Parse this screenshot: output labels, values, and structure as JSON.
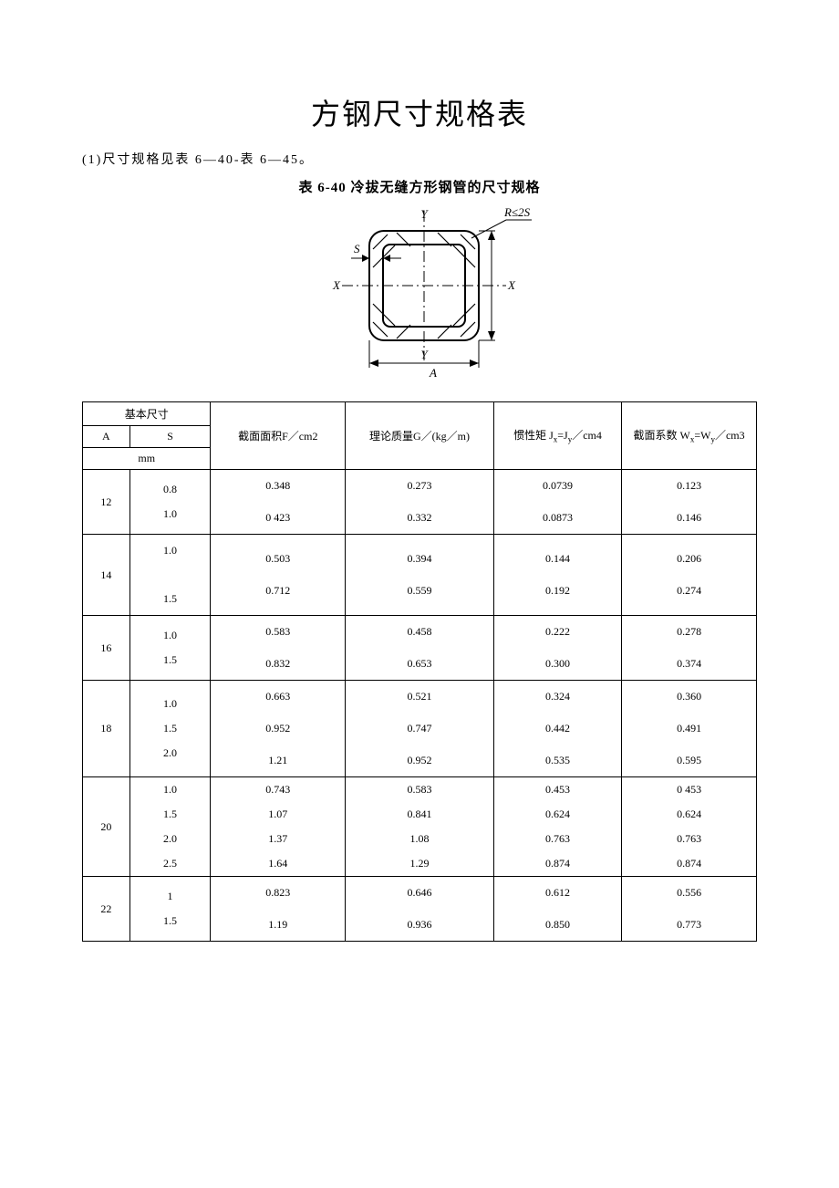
{
  "document": {
    "main_title": "方钢尺寸规格表",
    "intro": "(1)尺寸规格见表 6—40-表 6—45。",
    "table_title": "表 6-40 冷拔无缝方形钢管的尺寸规格",
    "diagram": {
      "labels": {
        "Y_top": "Y",
        "Y_bot": "Y",
        "X_left": "X",
        "X_right": "X",
        "S": "S",
        "A": "A",
        "R": "R≤2S"
      },
      "stroke": "#000000",
      "hatch_stroke": "#000000",
      "bg": "#ffffff"
    },
    "table": {
      "headers": {
        "basic": "基本尺寸",
        "A": "A",
        "S": "S",
        "mm": "mm",
        "F": "截面面积F／cm2",
        "G": "理论质量G／(kg／m)",
        "J": "惯性矩 Jx=Jy／cm4",
        "W": "截面系数 Wx=Wy／cm3"
      },
      "groups": [
        {
          "A": "12",
          "rows": [
            {
              "S": "0.8",
              "F": "0.348",
              "G": "0.273",
              "J": "0.0739",
              "W": "0.123"
            },
            {
              "S": "1.0",
              "F": "0 423",
              "G": "0.332",
              "J": "0.0873",
              "W": "0.146"
            }
          ]
        },
        {
          "A": "14",
          "rows": [
            {
              "S": "1.0",
              "F": "0.503",
              "G": "0.394",
              "J": "0.144",
              "W": "0.206"
            },
            {
              "S": "1.5",
              "F": "0.712",
              "G": "0.559",
              "J": "0.192",
              "W": "0.274"
            }
          ],
          "s_spaced": true
        },
        {
          "A": "16",
          "rows": [
            {
              "S": "1.0",
              "F": "0.583",
              "G": "0.458",
              "J": "0.222",
              "W": "0.278"
            },
            {
              "S": "1.5",
              "F": "0.832",
              "G": "0.653",
              "J": "0.300",
              "W": "0.374"
            }
          ]
        },
        {
          "A": "18",
          "rows": [
            {
              "S": "1.0",
              "F": "0.663",
              "G": "0.521",
              "J": "0.324",
              "W": "0.360"
            },
            {
              "S": "1.5",
              "F": "0.952",
              "G": "0.747",
              "J": "0.442",
              "W": "0.491"
            },
            {
              "S": "2.0",
              "F": "1.21",
              "G": "0.952",
              "J": "0.535",
              "W": "0.595"
            }
          ]
        },
        {
          "A": "20",
          "rows": [
            {
              "S": "1.0",
              "F": "0.743",
              "G": "0.583",
              "J": "0.453",
              "W": "0 453"
            },
            {
              "S": "1.5",
              "F": "1.07",
              "G": "0.841",
              "J": "0.624",
              "W": "0.624"
            },
            {
              "S": "2.0",
              "F": "1.37",
              "G": "1.08",
              "J": "0.763",
              "W": "0.763"
            },
            {
              "S": "2.5",
              "F": "1.64",
              "G": "1.29",
              "J": "0.874",
              "W": "0.874"
            }
          ]
        },
        {
          "A": "22",
          "rows": [
            {
              "S": "1",
              "F": "0.823",
              "G": "0.646",
              "J": "0.612",
              "W": "0.556"
            },
            {
              "S": "1.5",
              "F": "1.19",
              "G": "0.936",
              "J": "0.850",
              "W": "0.773"
            }
          ]
        }
      ],
      "col_widths_pct": [
        7,
        12,
        20,
        22,
        19,
        20
      ],
      "border_color": "#000000",
      "font_size_pt": 9
    }
  }
}
